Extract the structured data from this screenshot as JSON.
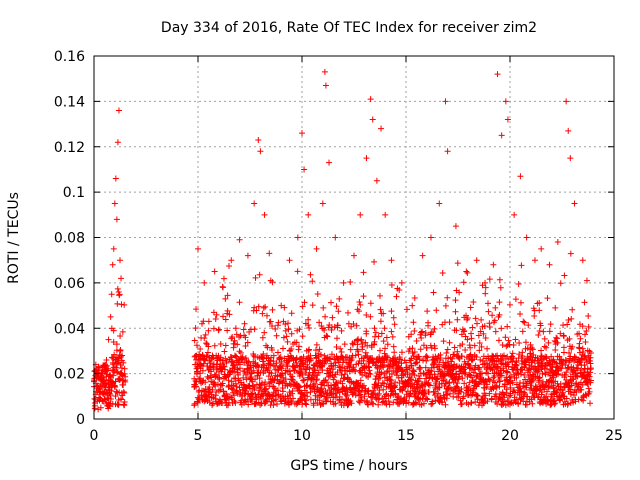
{
  "chart_data": {
    "type": "scatter",
    "title": "Day 334 of 2016, Rate Of TEC Index for receiver zim2",
    "xlabel": "GPS time / hours",
    "ylabel": "ROTI / TECUs",
    "xlim": [
      0,
      25
    ],
    "ylim": [
      0,
      0.16
    ],
    "xticks": [
      0,
      5,
      10,
      15,
      20,
      25
    ],
    "xtick_labels": [
      "0",
      "5",
      "10",
      "15",
      "20",
      "25"
    ],
    "yticks": [
      0,
      0.02,
      0.04,
      0.06,
      0.08,
      0.1,
      0.12,
      0.14,
      0.16
    ],
    "ytick_labels": [
      "0",
      "0.02",
      "0.04",
      "0.06",
      "0.08",
      "0.1",
      "0.12",
      "0.14",
      "0.16"
    ],
    "grid": true,
    "marker": "plus",
    "color": "#ff0000",
    "data_gap_hours": [
      1.5,
      4.8
    ],
    "series": [
      {
        "name": "zim2",
        "points": [
          [
            0.1,
            0.012
          ],
          [
            0.2,
            0.018
          ],
          [
            0.3,
            0.009
          ],
          [
            0.4,
            0.022
          ],
          [
            0.5,
            0.015
          ],
          [
            0.6,
            0.026
          ],
          [
            0.7,
            0.035
          ],
          [
            0.8,
            0.045
          ],
          [
            0.85,
            0.055
          ],
          [
            0.9,
            0.068
          ],
          [
            0.95,
            0.075
          ],
          [
            1.0,
            0.095
          ],
          [
            1.05,
            0.106
          ],
          [
            1.1,
            0.088
          ],
          [
            1.15,
            0.122
          ],
          [
            1.2,
            0.136
          ],
          [
            1.25,
            0.07
          ],
          [
            1.3,
            0.062
          ],
          [
            1.35,
            0.028
          ],
          [
            1.4,
            0.015
          ],
          [
            5.0,
            0.075
          ],
          [
            5.3,
            0.06
          ],
          [
            5.8,
            0.065
          ],
          [
            6.2,
            0.058
          ],
          [
            6.6,
            0.07
          ],
          [
            7.0,
            0.079
          ],
          [
            7.4,
            0.072
          ],
          [
            7.7,
            0.095
          ],
          [
            7.9,
            0.123
          ],
          [
            8.0,
            0.118
          ],
          [
            8.2,
            0.09
          ],
          [
            8.5,
            0.061
          ],
          [
            9.0,
            0.05
          ],
          [
            9.4,
            0.07
          ],
          [
            9.8,
            0.08
          ],
          [
            10.0,
            0.126
          ],
          [
            10.1,
            0.11
          ],
          [
            10.3,
            0.09
          ],
          [
            10.7,
            0.075
          ],
          [
            11.0,
            0.095
          ],
          [
            11.1,
            0.153
          ],
          [
            11.15,
            0.147
          ],
          [
            11.3,
            0.113
          ],
          [
            11.6,
            0.08
          ],
          [
            12.0,
            0.06
          ],
          [
            12.5,
            0.072
          ],
          [
            12.8,
            0.09
          ],
          [
            13.1,
            0.115
          ],
          [
            13.3,
            0.141
          ],
          [
            13.4,
            0.132
          ],
          [
            13.6,
            0.105
          ],
          [
            13.8,
            0.128
          ],
          [
            14.0,
            0.09
          ],
          [
            14.3,
            0.07
          ],
          [
            14.8,
            0.06
          ],
          [
            15.3,
            0.05
          ],
          [
            15.8,
            0.072
          ],
          [
            16.2,
            0.08
          ],
          [
            16.6,
            0.095
          ],
          [
            16.9,
            0.14
          ],
          [
            17.0,
            0.118
          ],
          [
            17.4,
            0.085
          ],
          [
            17.9,
            0.065
          ],
          [
            18.4,
            0.07
          ],
          [
            18.8,
            0.06
          ],
          [
            19.2,
            0.068
          ],
          [
            19.4,
            0.152
          ],
          [
            19.6,
            0.125
          ],
          [
            19.8,
            0.14
          ],
          [
            19.9,
            0.132
          ],
          [
            20.2,
            0.09
          ],
          [
            20.5,
            0.107
          ],
          [
            20.8,
            0.08
          ],
          [
            21.2,
            0.07
          ],
          [
            21.5,
            0.075
          ],
          [
            21.9,
            0.068
          ],
          [
            22.3,
            0.078
          ],
          [
            22.7,
            0.14
          ],
          [
            22.8,
            0.127
          ],
          [
            22.9,
            0.115
          ],
          [
            23.1,
            0.095
          ],
          [
            23.5,
            0.07
          ],
          [
            23.7,
            0.061
          ]
        ]
      }
    ]
  }
}
